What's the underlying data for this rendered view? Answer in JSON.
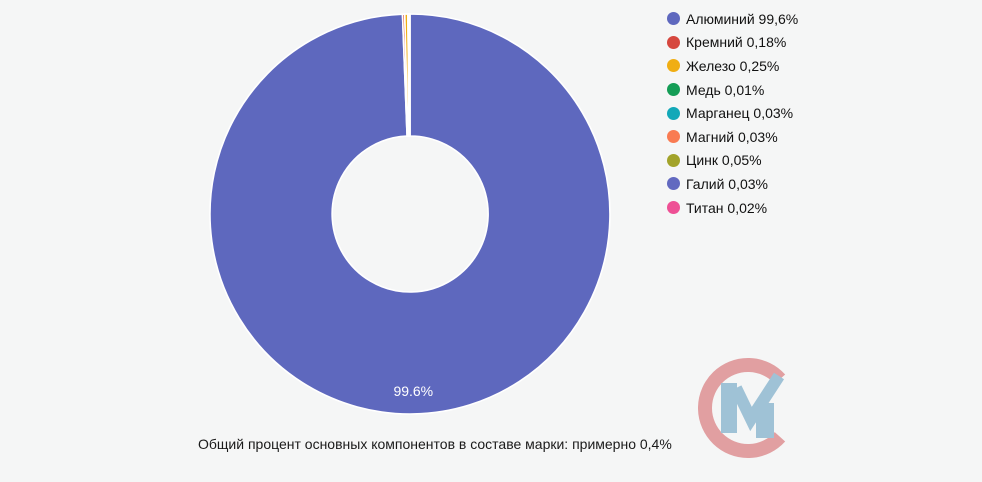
{
  "page": {
    "background": "#F5F6F6"
  },
  "chart_data": {
    "type": "pie",
    "donut": true,
    "title": "",
    "legend_position": "right",
    "grid": false,
    "series": [
      {
        "label": "Алюминий",
        "value": 99.6,
        "value_label": "99,6%",
        "color": "#5E68BE",
        "slice_label": "99.6%"
      },
      {
        "label": "Кремний",
        "value": 0.18,
        "value_label": "0,18%",
        "color": "#D6473E"
      },
      {
        "label": "Железо",
        "value": 0.25,
        "value_label": "0,25%",
        "color": "#F0AE13"
      },
      {
        "label": "Медь",
        "value": 0.01,
        "value_label": "0,01%",
        "color": "#149D56"
      },
      {
        "label": "Марганец",
        "value": 0.03,
        "value_label": "0,03%",
        "color": "#12A8B8"
      },
      {
        "label": "Магний",
        "value": 0.03,
        "value_label": "0,03%",
        "color": "#F97B52"
      },
      {
        "label": "Цинк",
        "value": 0.05,
        "value_label": "0,05%",
        "color": "#A2A32A"
      },
      {
        "label": "Галий",
        "value": 0.03,
        "value_label": "0,03%",
        "color": "#6269C0"
      },
      {
        "label": "Титан",
        "value": 0.02,
        "value_label": "0,02%",
        "color": "#EE5095"
      }
    ],
    "slice_label_color": "#FFFFFF",
    "slice_separator_color": "#FFFFFF",
    "caption": "Общий процент основных компонентов в составе марки: примерно 0,4%"
  },
  "watermark": {
    "colors": {
      "ring": "#E19FA1",
      "letter": "#9FC2D6"
    }
  }
}
